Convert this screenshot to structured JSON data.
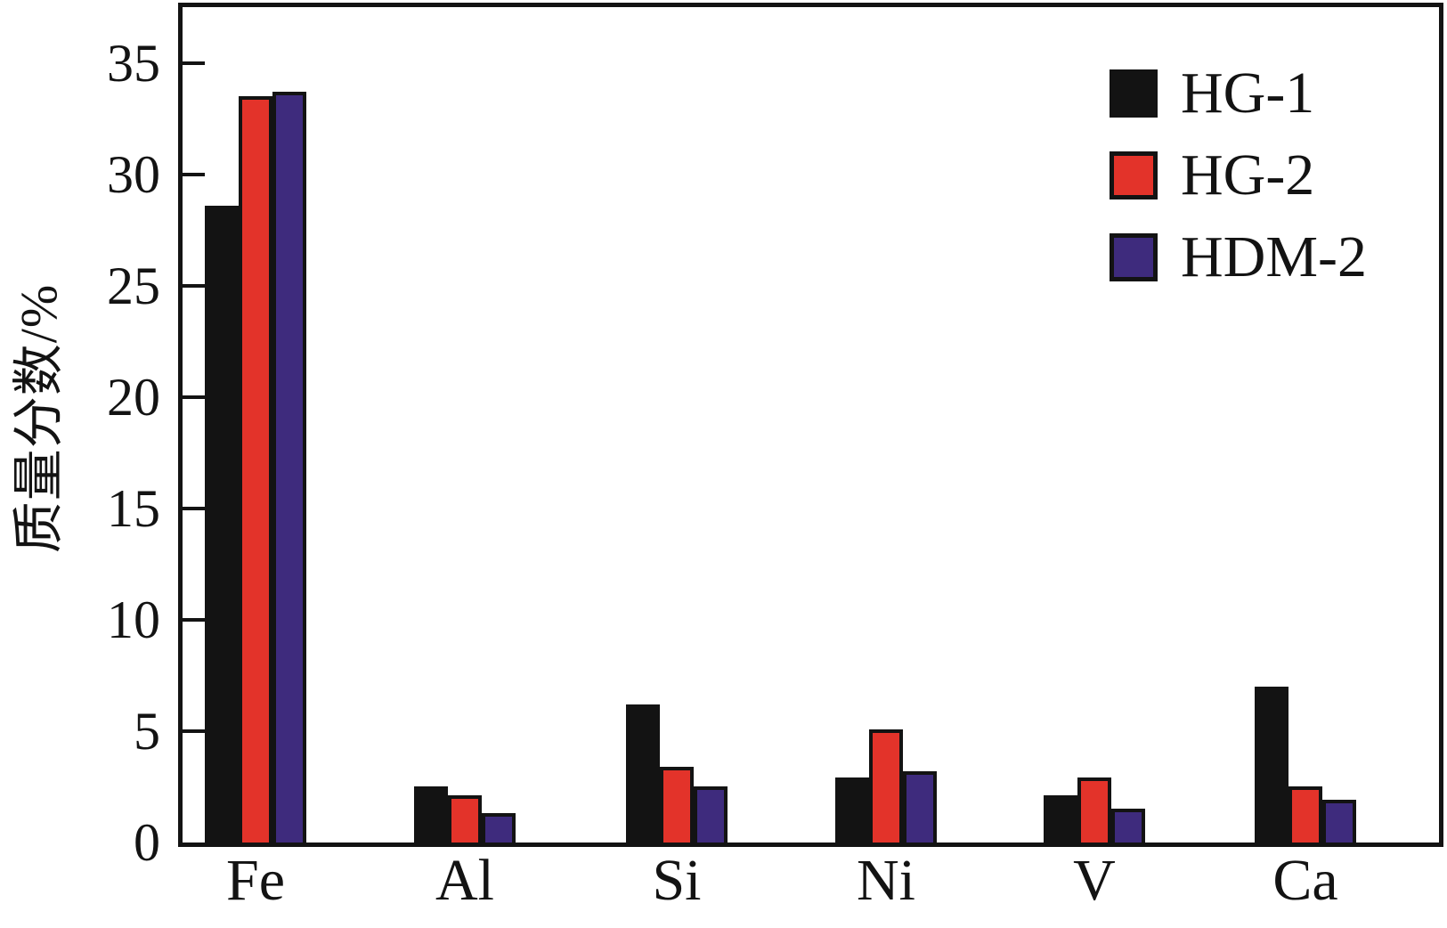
{
  "figure": {
    "background": "#ffffff",
    "frame_color": "#131313",
    "text_color": "#131313"
  },
  "chart_data": {
    "type": "bar",
    "title": "",
    "xlabel": "",
    "ylabel": "质量分数/%",
    "categories": [
      "Fe",
      "Al",
      "Si",
      "Ni",
      "V",
      "Ca"
    ],
    "series": [
      {
        "name": "HG-1",
        "color": "#131313",
        "values": [
          28.6,
          2.5,
          6.2,
          2.9,
          2.1,
          7.0
        ]
      },
      {
        "name": "HG-2",
        "color": "#e3332a",
        "values": [
          33.5,
          2.1,
          3.4,
          5.1,
          2.9,
          2.5
        ]
      },
      {
        "name": "HDM-2",
        "color": "#3e2b7d",
        "values": [
          33.7,
          1.3,
          2.5,
          3.2,
          1.5,
          1.9
        ]
      }
    ],
    "ylim": [
      0,
      37.5
    ],
    "yticks": [
      0,
      5,
      10,
      15,
      20,
      25,
      30,
      35
    ],
    "grid": false,
    "legend_position": "top-right",
    "bar_edge_color": "#131313"
  }
}
